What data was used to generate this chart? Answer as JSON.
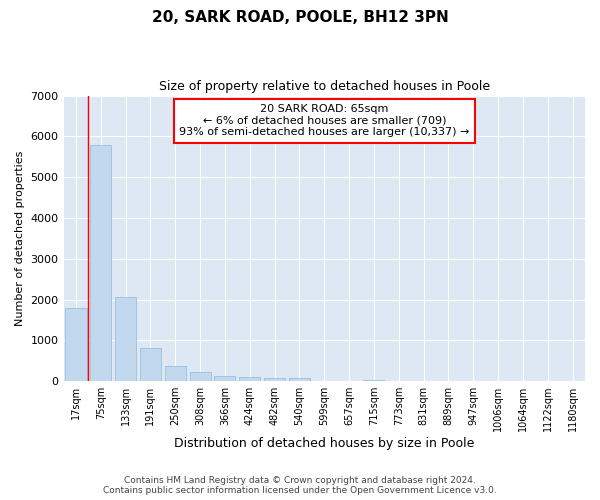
{
  "title": "20, SARK ROAD, POOLE, BH12 3PN",
  "subtitle": "Size of property relative to detached houses in Poole",
  "xlabel": "Distribution of detached houses by size in Poole",
  "ylabel": "Number of detached properties",
  "bar_color": "#c2d8ee",
  "bar_edge_color": "#90b8d8",
  "background_color": "#dde8f4",
  "grid_color": "#ffffff",
  "categories": [
    "17sqm",
    "75sqm",
    "133sqm",
    "191sqm",
    "250sqm",
    "308sqm",
    "366sqm",
    "424sqm",
    "482sqm",
    "540sqm",
    "599sqm",
    "657sqm",
    "715sqm",
    "773sqm",
    "831sqm",
    "889sqm",
    "947sqm",
    "1006sqm",
    "1064sqm",
    "1122sqm",
    "1180sqm"
  ],
  "values": [
    1800,
    5800,
    2050,
    820,
    370,
    230,
    120,
    100,
    85,
    65,
    0,
    0,
    30,
    0,
    0,
    0,
    0,
    0,
    0,
    0,
    0
  ],
  "annotation_text": "20 SARK ROAD: 65sqm\n← 6% of detached houses are smaller (709)\n93% of semi-detached houses are larger (10,337) →",
  "red_line_x": 0.5,
  "ylim": [
    0,
    7000
  ],
  "yticks": [
    0,
    1000,
    2000,
    3000,
    4000,
    5000,
    6000,
    7000
  ],
  "footer_line1": "Contains HM Land Registry data © Crown copyright and database right 2024.",
  "footer_line2": "Contains public sector information licensed under the Open Government Licence v3.0."
}
